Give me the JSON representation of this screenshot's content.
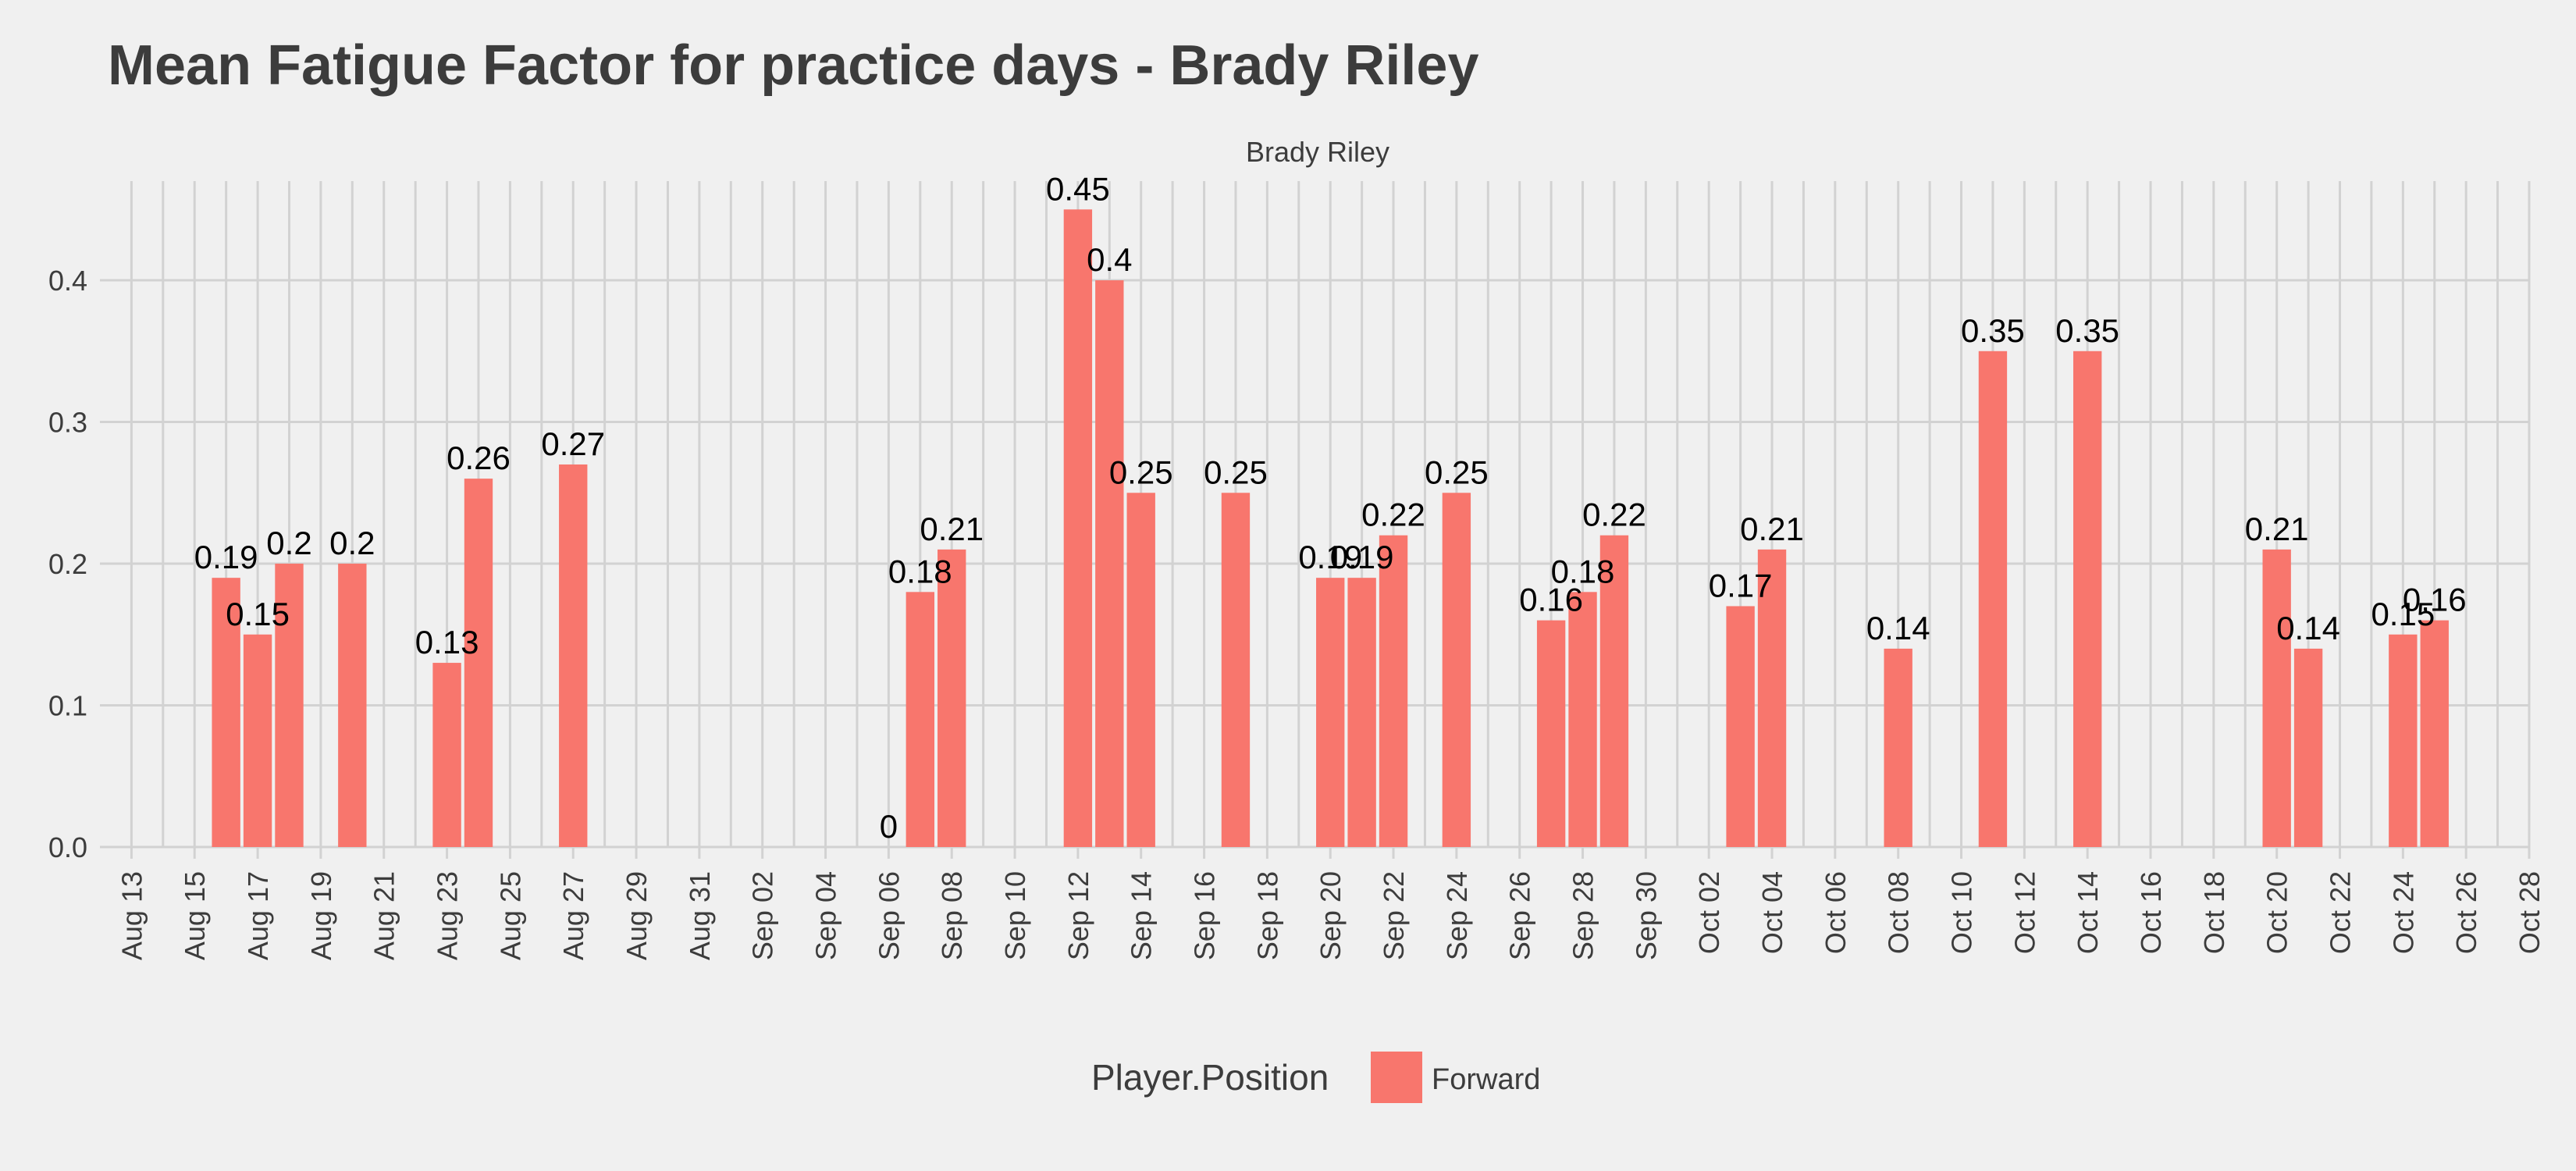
{
  "chart_data": {
    "type": "bar",
    "title": "Mean Fatigue Factor for practice days -  Brady Riley",
    "facet_label": "Brady Riley",
    "xlabel": "",
    "ylabel": "",
    "x_type": "date",
    "xlim": [
      "2018-08-12",
      "2018-10-28"
    ],
    "ylim": [
      0,
      0.47
    ],
    "y_ticks": [
      0.0,
      0.1,
      0.2,
      0.3,
      0.4
    ],
    "y_tick_labels": [
      "0.0",
      "0.1",
      "0.2",
      "0.3",
      "0.4"
    ],
    "x_ticks": [
      "2018-08-13",
      "2018-08-15",
      "2018-08-17",
      "2018-08-19",
      "2018-08-21",
      "2018-08-23",
      "2018-08-25",
      "2018-08-27",
      "2018-08-29",
      "2018-08-31",
      "2018-09-02",
      "2018-09-04",
      "2018-09-06",
      "2018-09-08",
      "2018-09-10",
      "2018-09-12",
      "2018-09-14",
      "2018-09-16",
      "2018-09-18",
      "2018-09-20",
      "2018-09-22",
      "2018-09-24",
      "2018-09-26",
      "2018-09-28",
      "2018-09-30",
      "2018-10-02",
      "2018-10-04",
      "2018-10-06",
      "2018-10-08",
      "2018-10-10",
      "2018-10-12",
      "2018-10-14",
      "2018-10-16",
      "2018-10-18",
      "2018-10-20",
      "2018-10-22",
      "2018-10-24",
      "2018-10-26",
      "2018-10-28"
    ],
    "x_tick_labels": [
      "Aug 13",
      "Aug 15",
      "Aug 17",
      "Aug 19",
      "Aug 21",
      "Aug 23",
      "Aug 25",
      "Aug 27",
      "Aug 29",
      "Aug 31",
      "Sep 02",
      "Sep 04",
      "Sep 06",
      "Sep 08",
      "Sep 10",
      "Sep 12",
      "Sep 14",
      "Sep 16",
      "Sep 18",
      "Sep 20",
      "Sep 22",
      "Sep 24",
      "Sep 26",
      "Sep 28",
      "Sep 30",
      "Oct 02",
      "Oct 04",
      "Oct 06",
      "Oct 08",
      "Oct 10",
      "Oct 12",
      "Oct 14",
      "Oct 16",
      "Oct 18",
      "Oct 20",
      "Oct 22",
      "Oct 24",
      "Oct 26",
      "Oct 28"
    ],
    "grid": true,
    "legend": {
      "title": "Player.Position",
      "position": "bottom",
      "items": [
        {
          "name": "Forward",
          "color": "#F8766D"
        }
      ]
    },
    "series": [
      {
        "name": "Forward",
        "color": "#F8766D",
        "points": [
          {
            "x": "2018-08-16",
            "y": 0.19,
            "label": "0.19"
          },
          {
            "x": "2018-08-17",
            "y": 0.15,
            "label": "0.15"
          },
          {
            "x": "2018-08-18",
            "y": 0.2,
            "label": "0.2"
          },
          {
            "x": "2018-08-20",
            "y": 0.2,
            "label": "0.2"
          },
          {
            "x": "2018-08-23",
            "y": 0.13,
            "label": "0.13"
          },
          {
            "x": "2018-08-24",
            "y": 0.26,
            "label": "0.26"
          },
          {
            "x": "2018-08-27",
            "y": 0.27,
            "label": "0.27"
          },
          {
            "x": "2018-09-06",
            "y": 0.0,
            "label": "0"
          },
          {
            "x": "2018-09-07",
            "y": 0.18,
            "label": "0.18"
          },
          {
            "x": "2018-09-08",
            "y": 0.21,
            "label": "0.21"
          },
          {
            "x": "2018-09-12",
            "y": 0.45,
            "label": "0.45"
          },
          {
            "x": "2018-09-13",
            "y": 0.4,
            "label": "0.4"
          },
          {
            "x": "2018-09-14",
            "y": 0.25,
            "label": "0.25"
          },
          {
            "x": "2018-09-17",
            "y": 0.25,
            "label": "0.25"
          },
          {
            "x": "2018-09-20",
            "y": 0.19,
            "label": "0.19"
          },
          {
            "x": "2018-09-21",
            "y": 0.19,
            "label": "0.19"
          },
          {
            "x": "2018-09-22",
            "y": 0.22,
            "label": "0.22"
          },
          {
            "x": "2018-09-24",
            "y": 0.25,
            "label": "0.25"
          },
          {
            "x": "2018-09-27",
            "y": 0.16,
            "label": "0.16"
          },
          {
            "x": "2018-09-28",
            "y": 0.18,
            "label": "0.18"
          },
          {
            "x": "2018-09-29",
            "y": 0.22,
            "label": "0.22"
          },
          {
            "x": "2018-10-03",
            "y": 0.17,
            "label": "0.17"
          },
          {
            "x": "2018-10-04",
            "y": 0.21,
            "label": "0.21"
          },
          {
            "x": "2018-10-08",
            "y": 0.14,
            "label": "0.14"
          },
          {
            "x": "2018-10-11",
            "y": 0.35,
            "label": "0.35"
          },
          {
            "x": "2018-10-14",
            "y": 0.35,
            "label": "0.35"
          },
          {
            "x": "2018-10-20",
            "y": 0.21,
            "label": "0.21"
          },
          {
            "x": "2018-10-21",
            "y": 0.14,
            "label": "0.14"
          },
          {
            "x": "2018-10-24",
            "y": 0.15,
            "label": "0.15"
          },
          {
            "x": "2018-10-25",
            "y": 0.16,
            "label": "0.16"
          }
        ]
      }
    ]
  },
  "colors": {
    "background": "#F0F0F0",
    "gridline": "#D2D2D2",
    "bar": "#F8766D",
    "text": "#3C3C3C",
    "data_label": "#000000"
  }
}
